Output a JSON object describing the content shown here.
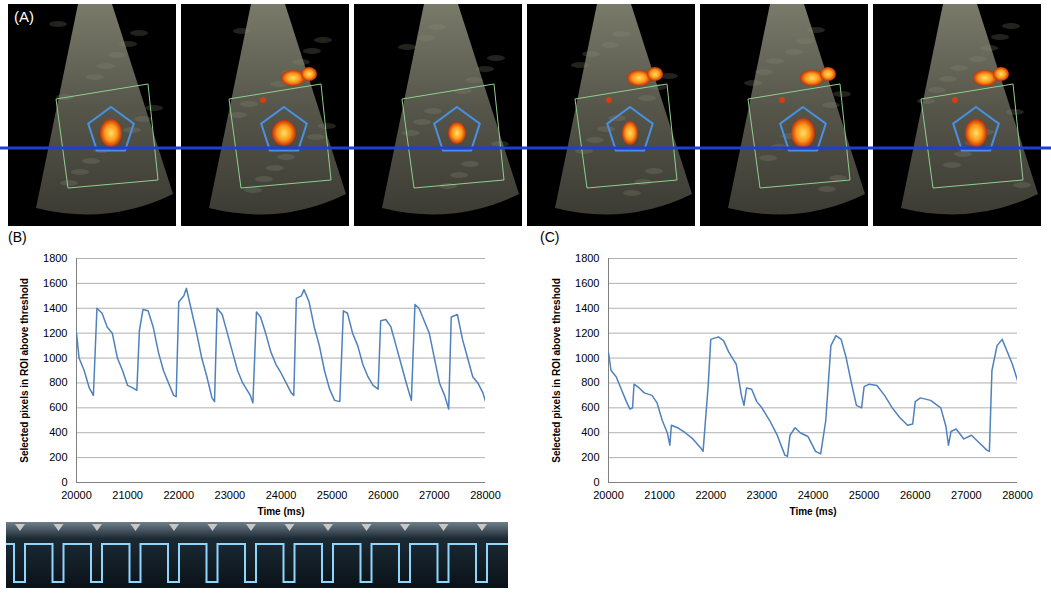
{
  "image_panel": {
    "label": "(A)"
  },
  "chart_data": [
    {
      "type": "line",
      "title": "(B)",
      "x_label": "Time (ms)",
      "y_label": "Selected pixels in ROI above threshold",
      "color": "#4f81bd",
      "grid": true,
      "xlim": [
        20000,
        28000
      ],
      "xticks": [
        20000,
        21000,
        22000,
        23000,
        24000,
        25000,
        26000,
        27000,
        28000
      ],
      "ylim": [
        0,
        1800
      ],
      "yticks": [
        0,
        200,
        400,
        600,
        800,
        1000,
        1200,
        1400,
        1600,
        1800
      ],
      "x": [
        20000,
        20050,
        20150,
        20250,
        20330,
        20400,
        20500,
        20600,
        20700,
        20800,
        20900,
        21000,
        21100,
        21180,
        21230,
        21300,
        21400,
        21500,
        21600,
        21700,
        21800,
        21900,
        21950,
        22000,
        22100,
        22150,
        22250,
        22350,
        22450,
        22550,
        22650,
        22700,
        22750,
        22850,
        22950,
        23050,
        23150,
        23250,
        23400,
        23450,
        23520,
        23600,
        23700,
        23800,
        23900,
        24000,
        24100,
        24200,
        24250,
        24300,
        24400,
        24450,
        24550,
        24650,
        24750,
        24850,
        24950,
        25050,
        25150,
        25220,
        25300,
        25400,
        25500,
        25600,
        25700,
        25800,
        25900,
        25950,
        26050,
        26150,
        26250,
        26350,
        26450,
        26550,
        26620,
        26700,
        26800,
        26900,
        27000,
        27100,
        27200,
        27280,
        27330,
        27450,
        27550,
        27650,
        27750,
        27850,
        27950,
        28000
      ],
      "values": [
        1200,
        1000,
        900,
        760,
        700,
        1400,
        1360,
        1250,
        1200,
        1000,
        900,
        780,
        760,
        740,
        1220,
        1390,
        1380,
        1250,
        1050,
        900,
        800,
        700,
        690,
        1450,
        1500,
        1560,
        1380,
        1200,
        1000,
        850,
        680,
        650,
        1400,
        1350,
        1200,
        1050,
        900,
        800,
        700,
        640,
        1370,
        1330,
        1200,
        1050,
        950,
        880,
        800,
        720,
        700,
        1480,
        1500,
        1550,
        1450,
        1250,
        1100,
        900,
        750,
        660,
        650,
        1380,
        1360,
        1200,
        1100,
        950,
        850,
        780,
        750,
        1300,
        1310,
        1250,
        1100,
        950,
        800,
        660,
        1430,
        1400,
        1300,
        1200,
        1000,
        800,
        700,
        590,
        1330,
        1350,
        1150,
        1000,
        850,
        800,
        720,
        650
      ]
    },
    {
      "type": "line",
      "title": "(C)",
      "x_label": "Time (ms)",
      "y_label": "Selected pixels in ROI above threshold",
      "color": "#4f81bd",
      "grid": true,
      "xlim": [
        20000,
        28000
      ],
      "xticks": [
        20000,
        21000,
        22000,
        23000,
        24000,
        25000,
        26000,
        27000,
        28000
      ],
      "ylim": [
        0,
        1800
      ],
      "yticks": [
        0,
        200,
        400,
        600,
        800,
        1000,
        1200,
        1400,
        1600,
        1800
      ],
      "x": [
        20000,
        20050,
        20150,
        20250,
        20350,
        20420,
        20470,
        20500,
        20600,
        20700,
        20850,
        20950,
        21050,
        21150,
        21200,
        21230,
        21350,
        21500,
        21650,
        21800,
        21850,
        21950,
        22000,
        22150,
        22250,
        22350,
        22500,
        22600,
        22650,
        22700,
        22800,
        22900,
        23000,
        23150,
        23300,
        23450,
        23500,
        23550,
        23650,
        23750,
        23900,
        24050,
        24150,
        24250,
        24350,
        24450,
        24550,
        24650,
        24750,
        24850,
        24950,
        25000,
        25100,
        25250,
        25400,
        25550,
        25700,
        25850,
        25950,
        26000,
        26100,
        26300,
        26500,
        26600,
        26650,
        26700,
        26800,
        26950,
        27100,
        27250,
        27400,
        27450,
        27500,
        27600,
        27700,
        27800,
        27900,
        28000
      ],
      "values": [
        1040,
        900,
        850,
        750,
        650,
        590,
        600,
        790,
        760,
        720,
        700,
        640,
        500,
        400,
        300,
        460,
        440,
        400,
        350,
        280,
        250,
        780,
        1150,
        1170,
        1140,
        1050,
        950,
        700,
        620,
        760,
        750,
        650,
        600,
        500,
        380,
        220,
        210,
        380,
        440,
        400,
        370,
        250,
        230,
        500,
        1100,
        1180,
        1150,
        1000,
        800,
        620,
        600,
        770,
        790,
        780,
        700,
        600,
        520,
        460,
        470,
        650,
        680,
        660,
        600,
        450,
        300,
        410,
        430,
        350,
        380,
        320,
        260,
        250,
        900,
        1100,
        1150,
        1050,
        950,
        820
      ]
    }
  ]
}
